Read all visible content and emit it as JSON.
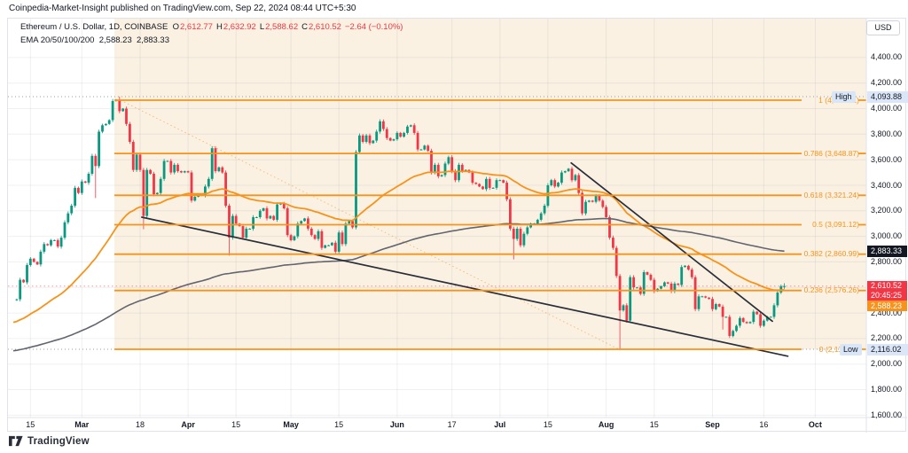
{
  "page": {
    "header": "Coinpedia-Market-Insight published on TradingView.com, Sep 22, 2024 08:44 UTC+5:30",
    "logo_text": "TradingView"
  },
  "legend": {
    "symbol_full": "Ethereum / U.S. Dollar, 1D, COINBASE",
    "o_label": "O",
    "o": "2,612.77",
    "h_label": "H",
    "h": "2,632.92",
    "l_label": "L",
    "l": "2,588.62",
    "c_label": "C",
    "c": "2,610.52",
    "change": "−2.64 (−0.10%)",
    "ema_label": "EMA 20/50/100/200",
    "ema_fast_value": "2,588.23",
    "ema_slow_value": "2,883.33"
  },
  "price_scale": {
    "currency": "USD",
    "ticks": [
      {
        "label": "4,400.00",
        "price": 4400
      },
      {
        "label": "4,200.00",
        "price": 4200
      },
      {
        "label": "4,000.00",
        "price": 4000
      },
      {
        "label": "3,800.00",
        "price": 3800
      },
      {
        "label": "3,600.00",
        "price": 3600
      },
      {
        "label": "3,400.00",
        "price": 3400
      },
      {
        "label": "3,200.00",
        "price": 3200
      },
      {
        "label": "3,000.00",
        "price": 3000
      },
      {
        "label": "2,800.00",
        "price": 2800
      },
      {
        "label": "2,400.00",
        "price": 2400
      },
      {
        "label": "2,200.00",
        "price": 2200
      },
      {
        "label": "2,000.00",
        "price": 2000
      },
      {
        "label": "1,800.00",
        "price": 1800
      },
      {
        "label": "1,600.00",
        "price": 1600
      }
    ],
    "high_marker": {
      "label": "High",
      "value": "4,093.88",
      "price": 4093.88
    },
    "low_marker": {
      "label": "Low",
      "value": "2,116.02",
      "price": 2116.02
    },
    "badges": {
      "ema_slow": {
        "value": "2,883.33",
        "price": 2883.33
      },
      "last": {
        "value": "2,610.52",
        "countdown": "20:45:25",
        "price": 2610.52
      },
      "ema_fast": {
        "value": "2,588.23",
        "price": 2588.23
      }
    }
  },
  "colors": {
    "up": "#089981",
    "down": "#f23645",
    "accent_orange": "#f7931a",
    "ema_slow_gray": "#62656e",
    "trendline": "#2a2e39",
    "fib_fill": "#faf1e3",
    "grid": "rgba(42,46,57,0.07)",
    "dotted_marker": "#9aa0a6",
    "last_price_line": "#f23645"
  },
  "chart_data": {
    "type": "candlestick",
    "symbol": "Ethereum / U.S. Dollar",
    "interval": "1D",
    "exchange": "COINBASE",
    "last_ohlc": {
      "open": 2612.77,
      "high": 2632.92,
      "low": 2588.62,
      "close": 2610.52,
      "change": -2.64,
      "change_pct": -0.1
    },
    "visible_high": 4093.88,
    "visible_low": 2116.02,
    "y_axis_ticks": [
      4400,
      4200,
      4000,
      3800,
      3600,
      3400,
      3200,
      3000,
      2800,
      2600,
      2400,
      2200,
      2000,
      1800,
      1600
    ],
    "x_axis_ticks": [
      {
        "label": "15",
        "day": 5,
        "bold": false
      },
      {
        "label": "Mar",
        "day": 20,
        "bold": true
      },
      {
        "label": "18",
        "day": 37,
        "bold": false
      },
      {
        "label": "Apr",
        "day": 51,
        "bold": true
      },
      {
        "label": "15",
        "day": 65,
        "bold": false
      },
      {
        "label": "May",
        "day": 81,
        "bold": true
      },
      {
        "label": "15",
        "day": 95,
        "bold": false
      },
      {
        "label": "Jun",
        "day": 112,
        "bold": true
      },
      {
        "label": "17",
        "day": 128,
        "bold": false
      },
      {
        "label": "Jul",
        "day": 142,
        "bold": true
      },
      {
        "label": "15",
        "day": 156,
        "bold": false
      },
      {
        "label": "Aug",
        "day": 173,
        "bold": true
      },
      {
        "label": "15",
        "day": 187,
        "bold": false
      },
      {
        "label": "Sep",
        "day": 204,
        "bold": true
      },
      {
        "label": "16",
        "day": 219,
        "bold": false
      },
      {
        "label": "Oct",
        "day": 234,
        "bold": true
      }
    ],
    "closes": [
      2500,
      2507,
      2660,
      2640,
      2775,
      2825,
      2800,
      2780,
      2880,
      2940,
      2930,
      2970,
      2970,
      2920,
      2990,
      3110,
      3180,
      3240,
      3380,
      3340,
      3430,
      3420,
      3490,
      3630,
      3550,
      3820,
      3870,
      3880,
      3910,
      4060,
      4070,
      3980,
      4000,
      3880,
      3740,
      3520,
      3640,
      3520,
      3160,
      3520,
      3490,
      3330,
      3340,
      3450,
      3590,
      3590,
      3500,
      3560,
      3510,
      3500,
      3510,
      3500,
      3280,
      3310,
      3330,
      3320,
      3390,
      3450,
      3690,
      3510,
      3540,
      3500,
      3240,
      2990,
      3160,
      3100,
      3080,
      2990,
      3060,
      3060,
      3150,
      3150,
      3200,
      3220,
      3140,
      3160,
      3130,
      3250,
      3260,
      3220,
      3010,
      2970,
      3000,
      3100,
      3120,
      3140,
      3060,
      3010,
      2980,
      3040,
      2910,
      2930,
      2930,
      2950,
      2880,
      3030,
      2940,
      3100,
      3120,
      3070,
      3660,
      3790,
      3740,
      3790,
      3730,
      3750,
      3820,
      3900,
      3840,
      3770,
      3750,
      3760,
      3810,
      3780,
      3810,
      3860,
      3870,
      3810,
      3680,
      3680,
      3710,
      3670,
      3500,
      3560,
      3470,
      3480,
      3570,
      3620,
      3510,
      3440,
      3560,
      3510,
      3520,
      3500,
      3420,
      3410,
      3390,
      3370,
      3450,
      3380,
      3380,
      3440,
      3440,
      3420,
      3290,
      3060,
      2980,
      3060,
      2930,
      3020,
      3070,
      3100,
      3100,
      3130,
      3180,
      3240,
      3400,
      3440,
      3390,
      3420,
      3500,
      3510,
      3530,
      3440,
      3480,
      3340,
      3180,
      3270,
      3280,
      3270,
      3320,
      3280,
      3230,
      3150,
      2990,
      2910,
      2690,
      2420,
      2460,
      2340,
      2680,
      2600,
      2600,
      2550,
      2720,
      2700,
      2660,
      2570,
      2590,
      2610,
      2640,
      2630,
      2570,
      2630,
      2620,
      2760,
      2770,
      2740,
      2680,
      2430,
      2530,
      2530,
      2520,
      2510,
      2430,
      2470,
      2450,
      2370,
      2370,
      2220,
      2260,
      2300,
      2360,
      2330,
      2320,
      2330,
      2410,
      2390,
      2300,
      2340,
      2370,
      2370,
      2460,
      2560,
      2610,
      2610.52
    ],
    "wick_overrides": {
      "24": {
        "low": 3300
      },
      "31": {
        "high": 4093.88
      },
      "38": {
        "low": 3056
      },
      "63": {
        "low": 2850
      },
      "146": {
        "low": 2820
      },
      "177": {
        "low": 2116.02
      },
      "207": {
        "low": 2270
      },
      "225": {
        "high": 2632.92,
        "low": 2588.62
      }
    },
    "fib_levels": [
      {
        "level": "1",
        "price": 4066.21,
        "label": "1 (4,066.21)"
      },
      {
        "level": "0.786",
        "price": 3648.87,
        "label": "0.786 (3,648.87)"
      },
      {
        "level": "0.618",
        "price": 3321.24,
        "label": "0.618 (3,321.24)"
      },
      {
        "level": "0.5",
        "price": 3091.12,
        "label": "0.5 (3,091.12)"
      },
      {
        "level": "0.382",
        "price": 2860.99,
        "label": "0.382 (2,860.99)"
      },
      {
        "level": "0.236",
        "price": 2576.26,
        "label": "0.236 (2,576.26)"
      },
      {
        "level": "0",
        "price": 2116.02,
        "label": "0 (2,116.02)"
      }
    ],
    "fib_diagonal": {
      "from_day": 31.3,
      "from_price": 4066,
      "to_day": 176.7,
      "to_price": 2116.02
    },
    "ema_lines": [
      {
        "name": "ema-fast-orange",
        "length": 50,
        "seed": 2320,
        "last_value": 2588.23,
        "color_key": "accent_orange",
        "width": 1.8
      },
      {
        "name": "ema-slow-gray",
        "length": 200,
        "seed": 2100,
        "last_value": 2883.33,
        "color_key": "ema_slow_gray",
        "width": 1.6
      }
    ],
    "trendlines": [
      {
        "name": "long-descending-trendline",
        "from_day": 37.5,
        "from_price": 3150,
        "to_day": 226,
        "to_price": 2062
      },
      {
        "name": "steep-descending-trendline",
        "from_day": 162.8,
        "from_price": 3575,
        "to_day": 221.5,
        "to_price": 2335
      }
    ],
    "last_price": 2610.52
  }
}
